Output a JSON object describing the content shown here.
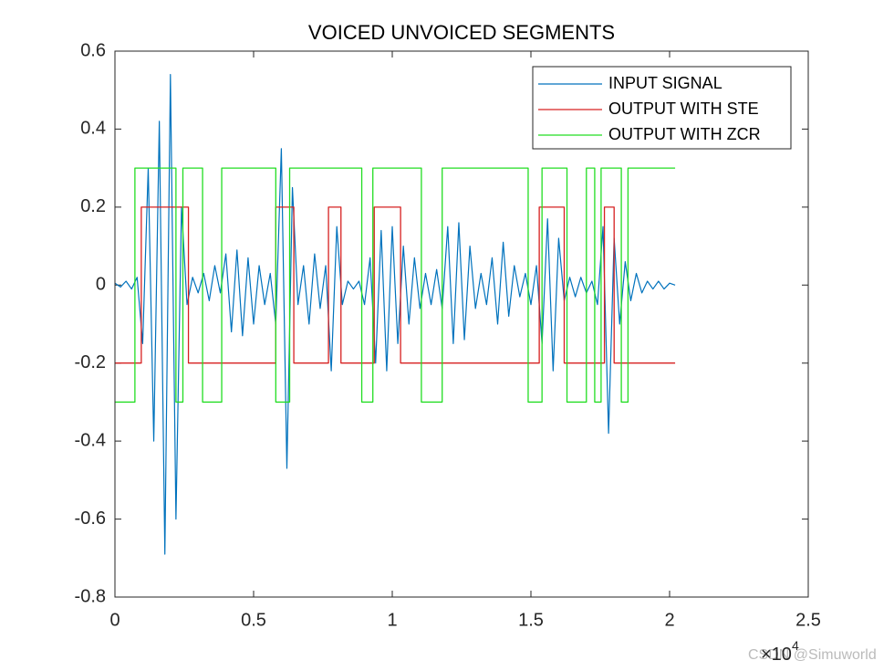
{
  "chart_data": {
    "type": "line",
    "title": "VOICED UNVOICED SEGMENTS",
    "xlim": [
      0,
      2.5
    ],
    "xticks": [
      0,
      0.5,
      1,
      1.5,
      2,
      2.5
    ],
    "ylim": [
      -0.8,
      0.6
    ],
    "yticks": [
      -0.8,
      -0.6,
      -0.4,
      -0.2,
      0,
      0.2,
      0.4,
      0.6
    ],
    "x_multiplier": "×10",
    "x_exponent": "4",
    "grid": false,
    "legend": "top-right",
    "watermark": "CSDN @Simuworld",
    "series": [
      {
        "name": "INPUT SIGNAL",
        "color": "#0072bd",
        "x": [
          0,
          0.02,
          0.04,
          0.06,
          0.08,
          0.1,
          0.12,
          0.14,
          0.16,
          0.18,
          0.2,
          0.22,
          0.24,
          0.26,
          0.28,
          0.3,
          0.32,
          0.34,
          0.36,
          0.38,
          0.4,
          0.42,
          0.44,
          0.46,
          0.48,
          0.5,
          0.52,
          0.54,
          0.56,
          0.58,
          0.6,
          0.62,
          0.64,
          0.66,
          0.68,
          0.7,
          0.72,
          0.74,
          0.76,
          0.78,
          0.8,
          0.82,
          0.84,
          0.86,
          0.88,
          0.9,
          0.92,
          0.94,
          0.96,
          0.98,
          1,
          1.02,
          1.04,
          1.06,
          1.08,
          1.1,
          1.12,
          1.14,
          1.16,
          1.18,
          1.2,
          1.22,
          1.24,
          1.26,
          1.28,
          1.3,
          1.32,
          1.34,
          1.36,
          1.38,
          1.4,
          1.42,
          1.44,
          1.46,
          1.48,
          1.5,
          1.52,
          1.54,
          1.56,
          1.58,
          1.6,
          1.62,
          1.64,
          1.66,
          1.68,
          1.7,
          1.72,
          1.74,
          1.76,
          1.78,
          1.8,
          1.82,
          1.84,
          1.86,
          1.88,
          1.9,
          1.92,
          1.94,
          1.96,
          1.98,
          2,
          2.02
        ],
        "values": [
          0.005,
          -0.005,
          0.01,
          -0.01,
          0.02,
          -0.15,
          0.3,
          -0.4,
          0.42,
          -0.69,
          0.54,
          -0.6,
          0.2,
          -0.05,
          0.02,
          -0.02,
          0.03,
          -0.04,
          0.05,
          -0.02,
          0.08,
          -0.12,
          0.09,
          -0.13,
          0.07,
          -0.1,
          0.05,
          -0.05,
          0.03,
          -0.1,
          0.35,
          -0.47,
          0.25,
          -0.05,
          0.05,
          -0.1,
          0.08,
          -0.06,
          0.05,
          -0.22,
          0.15,
          -0.05,
          0.01,
          -0.01,
          0.01,
          -0.05,
          0.07,
          -0.2,
          0.14,
          -0.22,
          0.15,
          -0.15,
          0.1,
          -0.1,
          0.07,
          -0.06,
          0.03,
          -0.05,
          0.04,
          -0.06,
          0.15,
          -0.15,
          0.16,
          -0.14,
          0.1,
          -0.06,
          0.03,
          -0.05,
          0.07,
          -0.1,
          0.11,
          -0.08,
          0.05,
          -0.03,
          0.03,
          -0.05,
          0.05,
          -0.15,
          0.17,
          -0.22,
          0.12,
          -0.04,
          0.02,
          -0.03,
          0.02,
          -0.02,
          0.01,
          -0.05,
          0.15,
          -0.38,
          0.12,
          -0.1,
          0.06,
          -0.04,
          0.03,
          -0.02,
          0.01,
          -0.01,
          0.01,
          -0.01,
          0.005,
          0
        ]
      },
      {
        "name": "OUTPUT WITH STE",
        "color": "#d62020",
        "x": [
          0,
          0.095,
          0.095,
          0.265,
          0.265,
          0.58,
          0.58,
          0.645,
          0.645,
          0.77,
          0.77,
          0.815,
          0.815,
          0.935,
          0.935,
          1.03,
          1.03,
          1.53,
          1.53,
          1.62,
          1.62,
          1.765,
          1.765,
          1.8,
          1.8,
          2.02
        ],
        "values": [
          -0.2,
          -0.2,
          0.2,
          0.2,
          -0.2,
          -0.2,
          0.2,
          0.2,
          -0.2,
          -0.2,
          0.2,
          0.2,
          -0.2,
          -0.2,
          0.2,
          0.2,
          -0.2,
          -0.2,
          0.2,
          0.2,
          -0.2,
          -0.2,
          0.2,
          0.2,
          -0.2,
          -0.2
        ]
      },
      {
        "name": "OUTPUT WITH ZCR",
        "color": "#22dd22",
        "x": [
          0,
          0.072,
          0.072,
          0.22,
          0.22,
          0.245,
          0.245,
          0.316,
          0.316,
          0.385,
          0.385,
          0.58,
          0.58,
          0.63,
          0.63,
          0.89,
          0.89,
          0.93,
          0.93,
          1.105,
          1.105,
          1.18,
          1.18,
          1.49,
          1.49,
          1.54,
          1.54,
          1.63,
          1.63,
          1.7,
          1.7,
          1.73,
          1.73,
          1.753,
          1.753,
          1.826,
          1.826,
          1.85,
          1.85,
          2.02
        ],
        "values": [
          -0.3,
          -0.3,
          0.3,
          0.3,
          -0.3,
          -0.3,
          0.3,
          0.3,
          -0.3,
          -0.3,
          0.3,
          0.3,
          -0.3,
          -0.3,
          0.3,
          0.3,
          -0.3,
          -0.3,
          0.3,
          0.3,
          -0.3,
          -0.3,
          0.3,
          0.3,
          -0.3,
          -0.3,
          0.3,
          0.3,
          -0.3,
          -0.3,
          0.3,
          0.3,
          -0.3,
          -0.3,
          0.3,
          0.3,
          -0.3,
          -0.3,
          0.3,
          0.3
        ]
      }
    ]
  }
}
